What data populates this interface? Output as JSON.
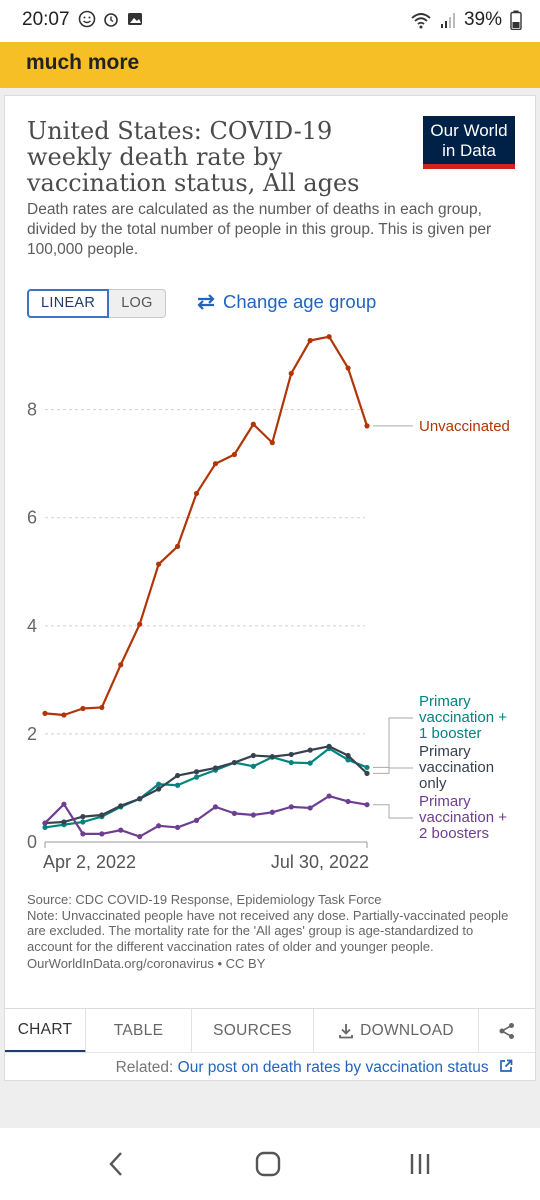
{
  "status_bar": {
    "time": "20:07",
    "battery": "39%"
  },
  "banner": {
    "text": "much more"
  },
  "chart_title": "United States: COVID-19 weekly death rate by vaccination status, All ages",
  "logo": {
    "line1": "Our World",
    "line2": "in Data"
  },
  "subtitle": "Death rates are calculated as the number of deaths in each group, divided by the total number of people in this group. This is given per 100,000 people.",
  "toggle": {
    "linear": "LINEAR",
    "log": "LOG"
  },
  "change_age_group": "Change age group",
  "chart_data": {
    "type": "line",
    "title": "United States: COVID-19 weekly death rate by vaccination status, All ages",
    "x": [
      "2022-04-02",
      "2022-04-09",
      "2022-04-16",
      "2022-04-23",
      "2022-04-30",
      "2022-05-07",
      "2022-05-14",
      "2022-05-21",
      "2022-05-28",
      "2022-06-04",
      "2022-06-11",
      "2022-06-18",
      "2022-06-25",
      "2022-07-02",
      "2022-07-09",
      "2022-07-16",
      "2022-07-23",
      "2022-07-30"
    ],
    "x_tick_labels": [
      "Apr 2, 2022",
      "Jul 30, 2022"
    ],
    "y_ticks": [
      "0",
      "2",
      "4",
      "6",
      "8"
    ],
    "ylim": [
      0,
      9.4
    ],
    "grid": "horizontal dashed",
    "legend": "right, labels at line ends",
    "series": [
      {
        "name": "Unvaccinated",
        "color": "#b13507",
        "values": [
          2.38,
          2.35,
          2.47,
          2.49,
          3.28,
          4.03,
          5.14,
          5.47,
          6.45,
          7.0,
          7.17,
          7.73,
          7.39,
          8.67,
          9.28,
          9.35,
          8.77,
          7.7
        ]
      },
      {
        "name": "Primary vaccination + 1 booster",
        "color": "#00847e",
        "values": [
          0.27,
          0.32,
          0.37,
          0.47,
          0.65,
          0.8,
          1.07,
          1.05,
          1.2,
          1.33,
          1.47,
          1.4,
          1.57,
          1.47,
          1.46,
          1.73,
          1.52,
          1.38
        ]
      },
      {
        "name": "Primary vaccination only",
        "color": "#38424f",
        "values": [
          0.35,
          0.37,
          0.47,
          0.5,
          0.67,
          0.8,
          0.98,
          1.23,
          1.3,
          1.37,
          1.47,
          1.6,
          1.58,
          1.62,
          1.7,
          1.77,
          1.6,
          1.27
        ]
      },
      {
        "name": "Primary vaccination + 2 boosters",
        "color": "#6d3e91",
        "values": [
          0.35,
          0.7,
          0.15,
          0.15,
          0.22,
          0.1,
          0.3,
          0.27,
          0.4,
          0.65,
          0.53,
          0.5,
          0.55,
          0.65,
          0.63,
          0.85,
          0.75,
          0.69
        ]
      }
    ]
  },
  "source": {
    "line1": "Source: CDC COVID-19 Response, Epidemiology Task Force",
    "line2": "Note: Unvaccinated people have not received any dose. Partially-vaccinated people are excluded. The mortality rate for the 'All ages' group is age-standardized to account for the different vaccination rates of older and younger people.",
    "link": "OurWorldInData.org/coronavirus • CC BY"
  },
  "tabs": {
    "chart": "CHART",
    "table": "TABLE",
    "sources": "SOURCES",
    "download": "DOWNLOAD"
  },
  "related": {
    "label": "Related:",
    "link": "Our post on death rates by vaccination status"
  },
  "colors": {
    "banner": "#f6bf26",
    "logo_bg": "#002147",
    "logo_accent": "#ce261e",
    "link": "#2165c0"
  }
}
